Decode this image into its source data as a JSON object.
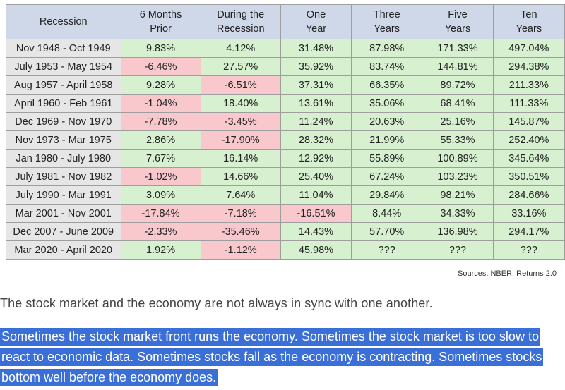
{
  "table": {
    "headers": {
      "recession": "Recession",
      "c1_l1": "6 Months",
      "c1_l2": "Prior",
      "c2_l1": "During the",
      "c2_l2": "Recession",
      "c3_l1": "One",
      "c3_l2": "Year",
      "c4_l1": "Three",
      "c4_l2": "Years",
      "c5_l1": "Five",
      "c5_l2": "Years",
      "c6_l1": "Ten",
      "c6_l2": "Years"
    },
    "rows": [
      {
        "recession": "Nov 1948 - Oct 1949",
        "values": [
          "9.83%",
          "4.12%",
          "31.48%",
          "87.98%",
          "171.33%",
          "497.04%"
        ],
        "status": [
          "pos",
          "pos",
          "pos",
          "pos",
          "pos",
          "pos"
        ]
      },
      {
        "recession": "July 1953 - May 1954",
        "values": [
          "-6.46%",
          "27.57%",
          "35.92%",
          "83.74%",
          "144.81%",
          "294.38%"
        ],
        "status": [
          "neg",
          "pos",
          "pos",
          "pos",
          "pos",
          "pos"
        ]
      },
      {
        "recession": "Aug 1957 - April 1958",
        "values": [
          "9.28%",
          "-6.51%",
          "37.31%",
          "66.35%",
          "89.72%",
          "211.33%"
        ],
        "status": [
          "pos",
          "neg",
          "pos",
          "pos",
          "pos",
          "pos"
        ]
      },
      {
        "recession": "April 1960 - Feb 1961",
        "values": [
          "-1.04%",
          "18.40%",
          "13.61%",
          "35.06%",
          "68.41%",
          "111.33%"
        ],
        "status": [
          "neg",
          "pos",
          "pos",
          "pos",
          "pos",
          "pos"
        ]
      },
      {
        "recession": "Dec 1969 - Nov 1970",
        "values": [
          "-7.78%",
          "-3.45%",
          "11.24%",
          "20.63%",
          "25.16%",
          "145.87%"
        ],
        "status": [
          "neg",
          "neg",
          "pos",
          "pos",
          "pos",
          "pos"
        ]
      },
      {
        "recession": "Nov 1973 - Mar 1975",
        "values": [
          "2.86%",
          "-17.90%",
          "28.32%",
          "21.99%",
          "55.33%",
          "252.40%"
        ],
        "status": [
          "pos",
          "neg",
          "pos",
          "pos",
          "pos",
          "pos"
        ]
      },
      {
        "recession": "Jan 1980 - July 1980",
        "values": [
          "7.67%",
          "16.14%",
          "12.92%",
          "55.89%",
          "100.89%",
          "345.64%"
        ],
        "status": [
          "pos",
          "pos",
          "pos",
          "pos",
          "pos",
          "pos"
        ]
      },
      {
        "recession": "July 1981 - Nov 1982",
        "values": [
          "-1.02%",
          "14.66%",
          "25.40%",
          "67.24%",
          "103.23%",
          "350.51%"
        ],
        "status": [
          "neg",
          "pos",
          "pos",
          "pos",
          "pos",
          "pos"
        ]
      },
      {
        "recession": "July 1990 - Mar 1991",
        "values": [
          "3.09%",
          "7.64%",
          "11.04%",
          "29.84%",
          "98.21%",
          "284.66%"
        ],
        "status": [
          "pos",
          "pos",
          "pos",
          "pos",
          "pos",
          "pos"
        ]
      },
      {
        "recession": "Mar 2001 - Nov 2001",
        "values": [
          "-17.84%",
          "-7.18%",
          "-16.51%",
          "8.44%",
          "34.33%",
          "33.16%"
        ],
        "status": [
          "neg",
          "neg",
          "neg",
          "pos",
          "pos",
          "pos"
        ]
      },
      {
        "recession": "Dec 2007 - June 2009",
        "values": [
          "-2.33%",
          "-35.46%",
          "14.43%",
          "57.70%",
          "136.98%",
          "294.17%"
        ],
        "status": [
          "neg",
          "neg",
          "pos",
          "pos",
          "pos",
          "pos"
        ]
      },
      {
        "recession": "Mar 2020 - April 2020",
        "values": [
          "1.92%",
          "-1.12%",
          "45.98%",
          "???",
          "???",
          "???"
        ],
        "status": [
          "pos",
          "neg",
          "pos",
          "pos",
          "pos",
          "pos"
        ]
      }
    ]
  },
  "sources": "Sources: NBER, Returns 2.0",
  "paragraph1": "The stock market and the economy are not always in sync with one another.",
  "paragraph2": "Sometimes the stock market front runs the economy. Sometimes the stock market is too slow to react to economic data. Sometimes stocks fall as the economy is contracting. Sometimes stocks bottom well before the economy does.",
  "colors": {
    "header_bg": "#cfd8e8",
    "positive_bg": "#d6f0d0",
    "negative_bg": "#f8c8cc",
    "recession_bg": "#e6e6e6",
    "selection_bg": "#3b6fd8"
  }
}
